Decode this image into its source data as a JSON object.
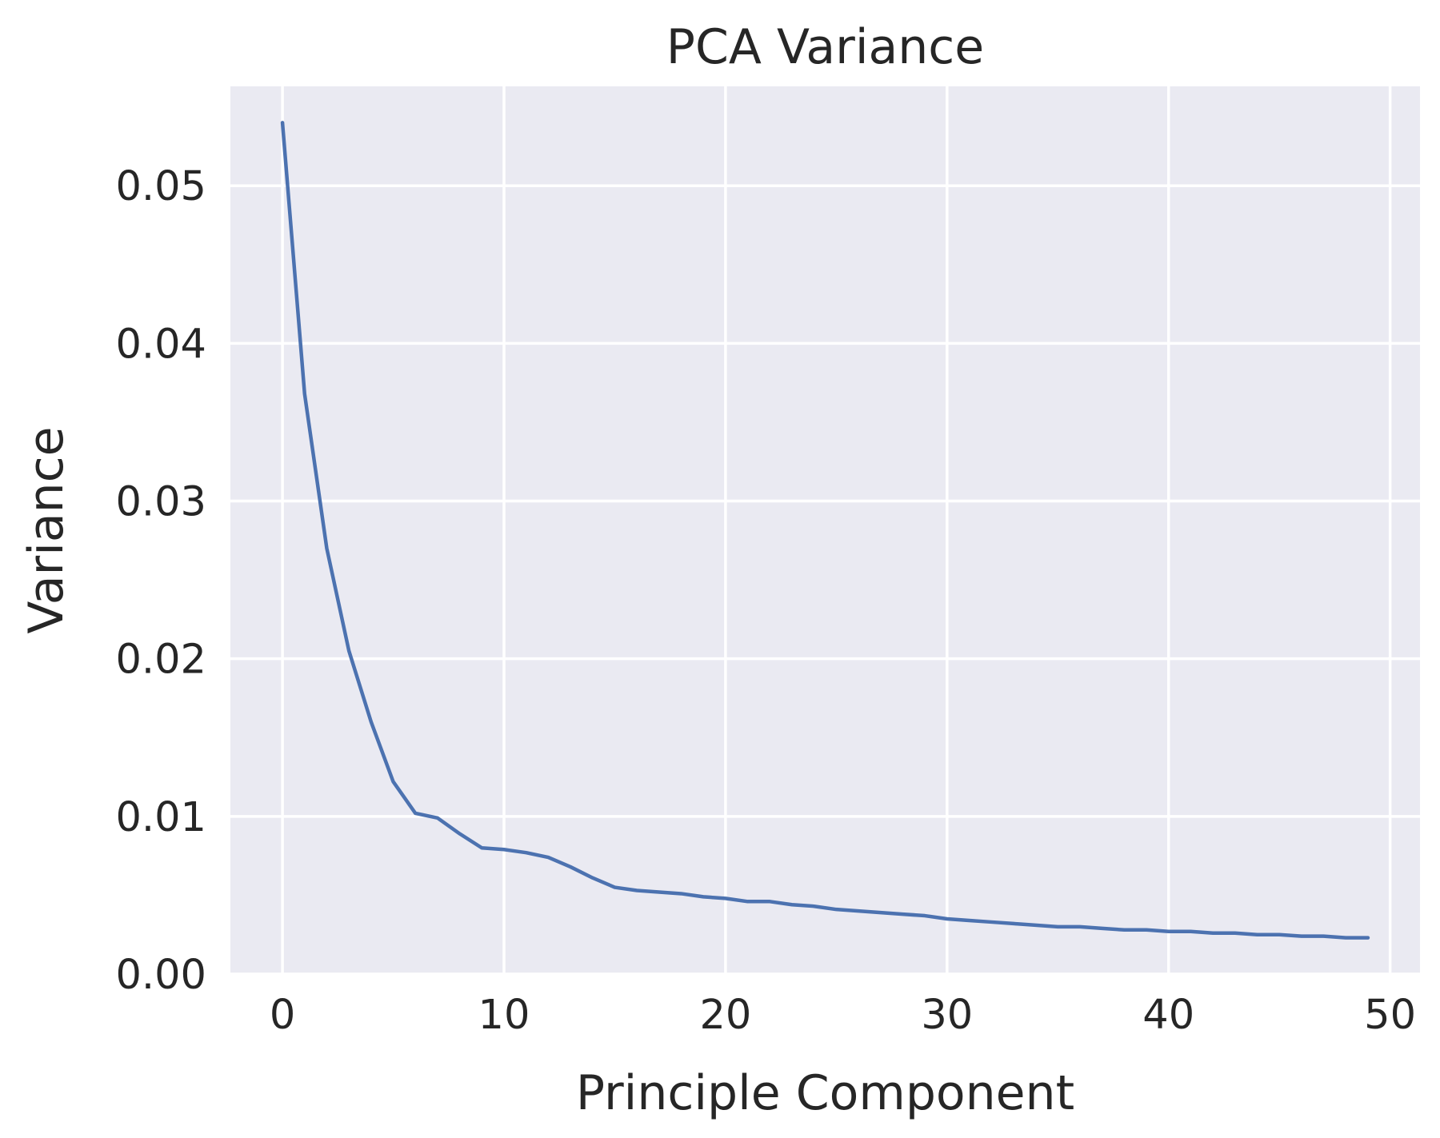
{
  "chart_data": {
    "type": "line",
    "title": "PCA Variance",
    "xlabel": "Principle Component",
    "ylabel": "Variance",
    "xlim": [
      -2.35,
      51.35
    ],
    "ylim": [
      0,
      0.0563
    ],
    "xticks": [
      0,
      10,
      20,
      30,
      40,
      50
    ],
    "xtick_labels": [
      "0",
      "10",
      "20",
      "30",
      "40",
      "50"
    ],
    "yticks": [
      0.0,
      0.01,
      0.02,
      0.03,
      0.04,
      0.05
    ],
    "ytick_labels": [
      "0.00",
      "0.01",
      "0.02",
      "0.03",
      "0.04",
      "0.05"
    ],
    "grid": true,
    "colors": {
      "background": "#eaeaf2",
      "grid": "#ffffff",
      "line": "#4c72b0",
      "text": "#262626"
    },
    "series": [
      {
        "x": [
          0,
          1,
          2,
          3,
          4,
          5,
          6,
          7,
          8,
          9,
          10,
          11,
          12,
          13,
          14,
          15,
          16,
          17,
          18,
          19,
          20,
          21,
          22,
          23,
          24,
          25,
          26,
          27,
          28,
          29,
          30,
          31,
          32,
          33,
          34,
          35,
          36,
          37,
          38,
          39,
          40,
          41,
          42,
          43,
          44,
          45,
          46,
          47,
          48,
          49
        ],
        "values": [
          0.054,
          0.0368,
          0.027,
          0.0205,
          0.016,
          0.0122,
          0.0102,
          0.0099,
          0.0089,
          0.008,
          0.0079,
          0.0077,
          0.0074,
          0.0068,
          0.0061,
          0.0055,
          0.0053,
          0.0052,
          0.0051,
          0.0049,
          0.0048,
          0.0046,
          0.0046,
          0.0044,
          0.0043,
          0.0041,
          0.004,
          0.0039,
          0.0038,
          0.0037,
          0.0035,
          0.0034,
          0.0033,
          0.0032,
          0.0031,
          0.003,
          0.003,
          0.0029,
          0.0028,
          0.0028,
          0.0027,
          0.0027,
          0.0026,
          0.0026,
          0.0025,
          0.0025,
          0.0024,
          0.0024,
          0.0023,
          0.0023
        ]
      }
    ]
  }
}
